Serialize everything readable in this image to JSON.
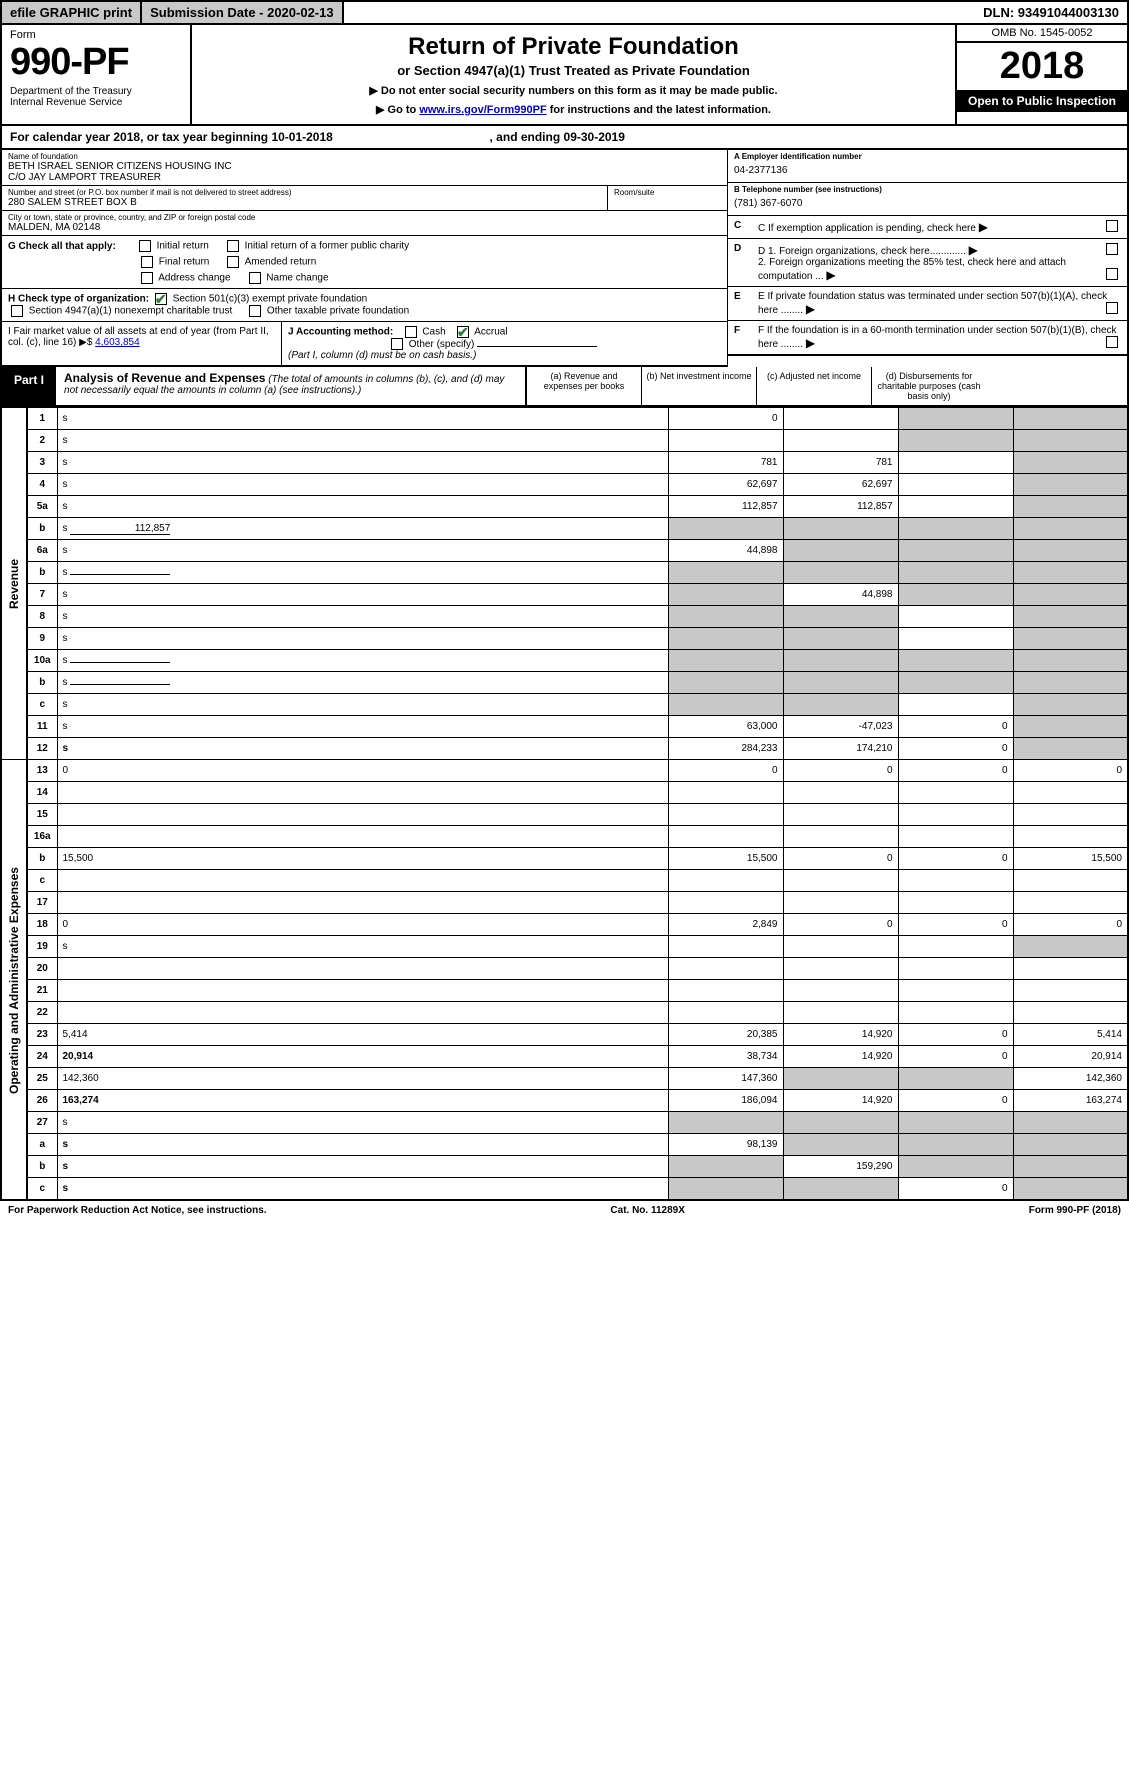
{
  "topbar": {
    "efile": "efile GRAPHIC print",
    "submission": "Submission Date - 2020-02-13",
    "dln": "DLN: 93491044003130"
  },
  "header": {
    "form_word": "Form",
    "form_num": "990-PF",
    "dept": "Department of the Treasury\nInternal Revenue Service",
    "title": "Return of Private Foundation",
    "subtitle": "or Section 4947(a)(1) Trust Treated as Private Foundation",
    "note1": "▶ Do not enter social security numbers on this form as it may be made public.",
    "note2_pre": "▶ Go to ",
    "note2_link": "www.irs.gov/Form990PF",
    "note2_post": " for instructions and the latest information.",
    "omb": "OMB No. 1545-0052",
    "year": "2018",
    "open": "Open to Public Inspection"
  },
  "calyear": {
    "text": "For calendar year 2018, or tax year beginning 10-01-2018",
    "ending": ", and ending 09-30-2019"
  },
  "info": {
    "name_lbl": "Name of foundation",
    "name_val": "BETH ISRAEL SENIOR CITIZENS HOUSING INC\nC/O JAY LAMPORT TREASURER",
    "addr_lbl": "Number and street (or P.O. box number if mail is not delivered to street address)",
    "addr_val": "280 SALEM STREET BOX B",
    "room_lbl": "Room/suite",
    "city_lbl": "City or town, state or province, country, and ZIP or foreign postal code",
    "city_val": "MALDEN, MA  02148",
    "ein_lbl": "A Employer identification number",
    "ein_val": "04-2377136",
    "tel_lbl": "B Telephone number (see instructions)",
    "tel_val": "(781) 367-6070",
    "c_lbl": "C If exemption application is pending, check here",
    "d1_lbl": "D 1. Foreign organizations, check here.............",
    "d2_lbl": "2. Foreign organizations meeting the 85% test, check here and attach computation ...",
    "e_lbl": "E  If private foundation status was terminated under section 507(b)(1)(A), check here ........",
    "f_lbl": "F  If the foundation is in a 60-month termination under section 507(b)(1)(B), check here ........"
  },
  "g": {
    "label": "G Check all that apply:",
    "opts": [
      "Initial return",
      "Initial return of a former public charity",
      "Final return",
      "Amended return",
      "Address change",
      "Name change"
    ]
  },
  "h": {
    "label": "H Check type of organization:",
    "opt1": "Section 501(c)(3) exempt private foundation",
    "opt2": "Section 4947(a)(1) nonexempt charitable trust",
    "opt3": "Other taxable private foundation"
  },
  "i": {
    "label": "I Fair market value of all assets at end of year (from Part II, col. (c), line 16) ▶$ ",
    "val": "4,603,854"
  },
  "j": {
    "label": "J Accounting method:",
    "cash": "Cash",
    "accrual": "Accrual",
    "other": "Other (specify)",
    "note": "(Part I, column (d) must be on cash basis.)"
  },
  "part1": {
    "tab": "Part I",
    "title": "Analysis of Revenue and Expenses",
    "sub": " (The total of amounts in columns (b), (c), and (d) may not necessarily equal the amounts in column (a) (see instructions).)",
    "cols": {
      "a": "(a)   Revenue and expenses per books",
      "b": "(b)  Net investment income",
      "c": "(c)  Adjusted net income",
      "d": "(d)  Disbursements for charitable purposes (cash basis only)"
    }
  },
  "revenue_label": "Revenue",
  "expenses_label": "Operating and Administrative Expenses",
  "rows": [
    {
      "sec": "rev",
      "n": "1",
      "d": "s",
      "a": "0",
      "b": "",
      "c": "s"
    },
    {
      "sec": "rev",
      "n": "2",
      "d": "s",
      "a": "",
      "b": "",
      "c": "s",
      "bold_not": true
    },
    {
      "sec": "rev",
      "n": "3",
      "d": "s",
      "a": "781",
      "b": "781",
      "c": ""
    },
    {
      "sec": "rev",
      "n": "4",
      "d": "s",
      "a": "62,697",
      "b": "62,697",
      "c": ""
    },
    {
      "sec": "rev",
      "n": "5a",
      "d": "s",
      "a": "112,857",
      "b": "112,857",
      "c": ""
    },
    {
      "sec": "rev",
      "n": "b",
      "d": "s",
      "a": "s",
      "b": "s",
      "c": "s",
      "inline": "112,857"
    },
    {
      "sec": "rev",
      "n": "6a",
      "d": "s",
      "a": "44,898",
      "b": "s",
      "c": "s"
    },
    {
      "sec": "rev",
      "n": "b",
      "d": "s",
      "a": "s",
      "b": "s",
      "c": "s",
      "inline": ""
    },
    {
      "sec": "rev",
      "n": "7",
      "d": "s",
      "a": "s",
      "b": "44,898",
      "c": "s"
    },
    {
      "sec": "rev",
      "n": "8",
      "d": "s",
      "a": "s",
      "b": "s",
      "c": ""
    },
    {
      "sec": "rev",
      "n": "9",
      "d": "s",
      "a": "s",
      "b": "s",
      "c": ""
    },
    {
      "sec": "rev",
      "n": "10a",
      "d": "s",
      "a": "s",
      "b": "s",
      "c": "s",
      "inline": ""
    },
    {
      "sec": "rev",
      "n": "b",
      "d": "s",
      "a": "s",
      "b": "s",
      "c": "s",
      "inline": ""
    },
    {
      "sec": "rev",
      "n": "c",
      "d": "s",
      "a": "s",
      "b": "s",
      "c": ""
    },
    {
      "sec": "rev",
      "n": "11",
      "d": "s",
      "a": "63,000",
      "b": "-47,023",
      "c": "0"
    },
    {
      "sec": "rev",
      "n": "12",
      "d": "s",
      "a": "284,233",
      "b": "174,210",
      "c": "0",
      "bold": true
    },
    {
      "sec": "exp",
      "n": "13",
      "d": "0",
      "a": "0",
      "b": "0",
      "c": "0"
    },
    {
      "sec": "exp",
      "n": "14",
      "d": "",
      "a": "",
      "b": "",
      "c": ""
    },
    {
      "sec": "exp",
      "n": "15",
      "d": "",
      "a": "",
      "b": "",
      "c": ""
    },
    {
      "sec": "exp",
      "n": "16a",
      "d": "",
      "a": "",
      "b": "",
      "c": ""
    },
    {
      "sec": "exp",
      "n": "b",
      "d": "15,500",
      "a": "15,500",
      "b": "0",
      "c": "0"
    },
    {
      "sec": "exp",
      "n": "c",
      "d": "",
      "a": "",
      "b": "",
      "c": ""
    },
    {
      "sec": "exp",
      "n": "17",
      "d": "",
      "a": "",
      "b": "",
      "c": ""
    },
    {
      "sec": "exp",
      "n": "18",
      "d": "0",
      "a": "2,849",
      "b": "0",
      "c": "0"
    },
    {
      "sec": "exp",
      "n": "19",
      "d": "s",
      "a": "",
      "b": "",
      "c": ""
    },
    {
      "sec": "exp",
      "n": "20",
      "d": "",
      "a": "",
      "b": "",
      "c": ""
    },
    {
      "sec": "exp",
      "n": "21",
      "d": "",
      "a": "",
      "b": "",
      "c": ""
    },
    {
      "sec": "exp",
      "n": "22",
      "d": "",
      "a": "",
      "b": "",
      "c": ""
    },
    {
      "sec": "exp",
      "n": "23",
      "d": "5,414",
      "a": "20,385",
      "b": "14,920",
      "c": "0"
    },
    {
      "sec": "exp",
      "n": "24",
      "d": "20,914",
      "a": "38,734",
      "b": "14,920",
      "c": "0",
      "bold": true
    },
    {
      "sec": "exp",
      "n": "25",
      "d": "142,360",
      "a": "147,360",
      "b": "s",
      "c": "s"
    },
    {
      "sec": "exp",
      "n": "26",
      "d": "163,274",
      "a": "186,094",
      "b": "14,920",
      "c": "0",
      "bold": true
    },
    {
      "sec": "exp",
      "n": "27",
      "d": "s",
      "a": "s",
      "b": "s",
      "c": "s"
    },
    {
      "sec": "exp",
      "n": "a",
      "d": "s",
      "a": "98,139",
      "b": "s",
      "c": "s",
      "bold": true
    },
    {
      "sec": "exp",
      "n": "b",
      "d": "s",
      "a": "s",
      "b": "159,290",
      "c": "s",
      "bold": true
    },
    {
      "sec": "exp",
      "n": "c",
      "d": "s",
      "a": "s",
      "b": "s",
      "c": "0",
      "bold": true
    }
  ],
  "footer": {
    "left": "For Paperwork Reduction Act Notice, see instructions.",
    "mid": "Cat. No. 11289X",
    "right": "Form 990-PF (2018)"
  }
}
